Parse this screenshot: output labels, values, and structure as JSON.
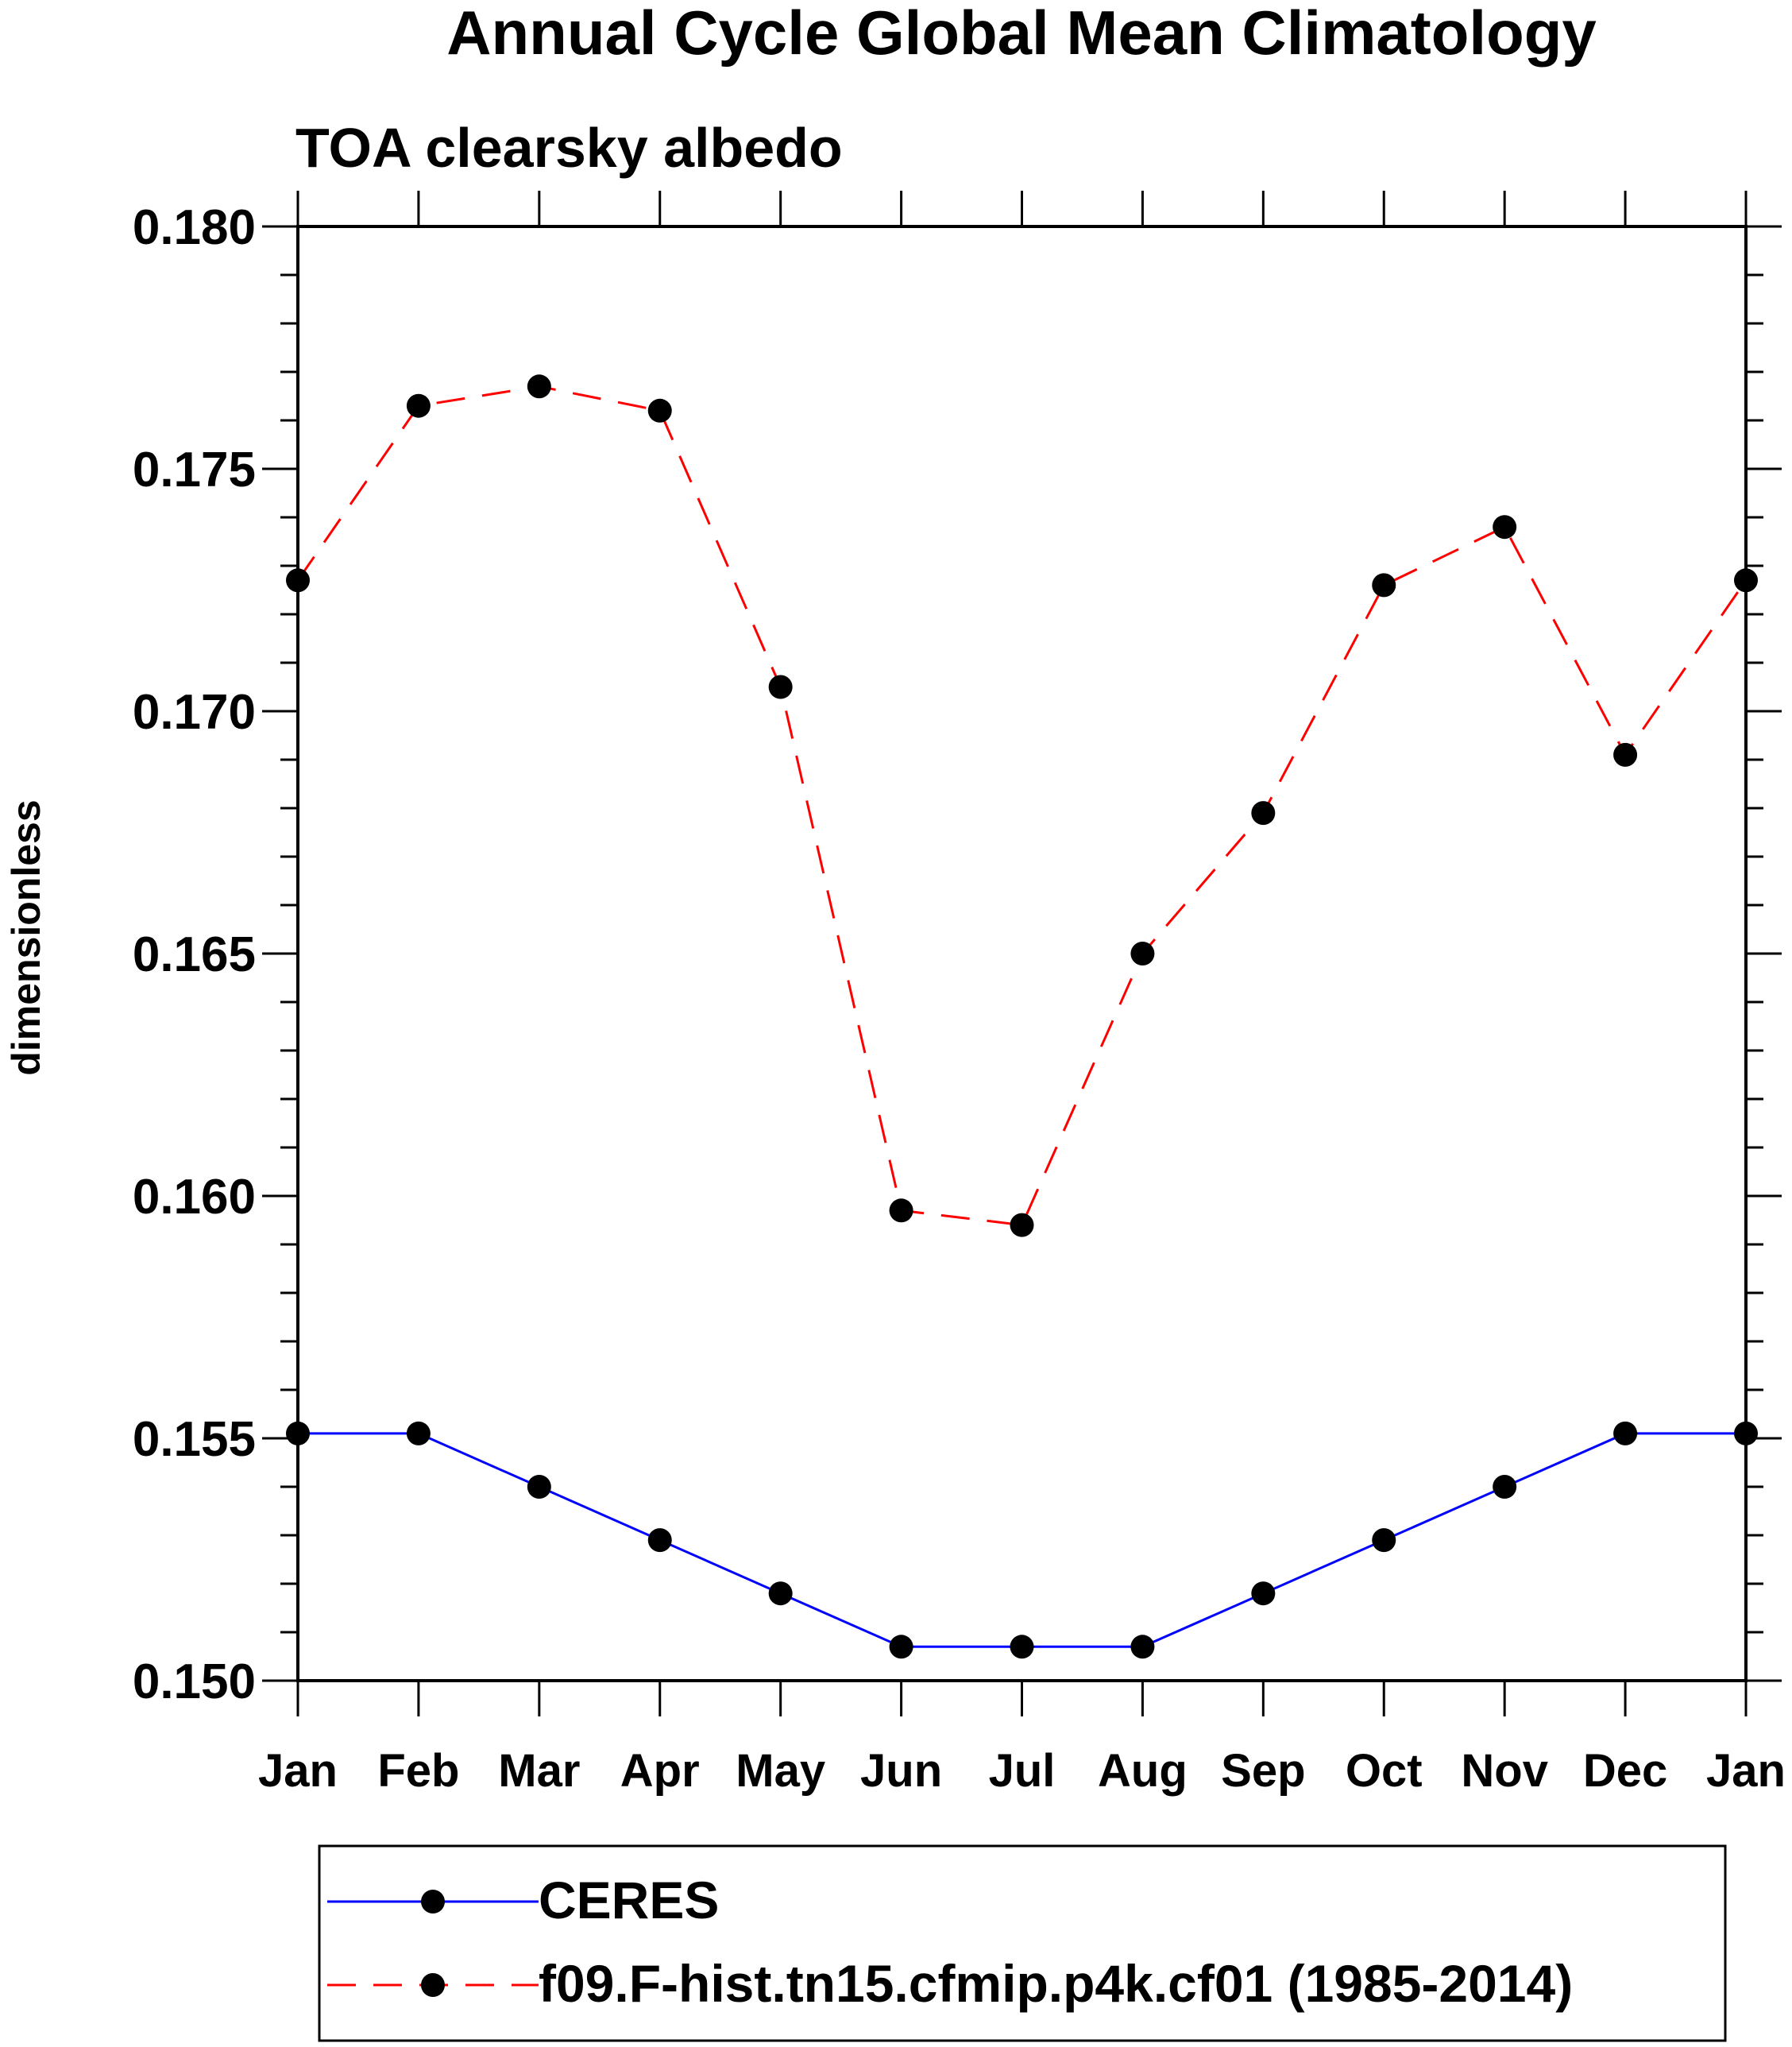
{
  "chart_data": {
    "type": "line",
    "title": "Annual Cycle Global Mean Climatology",
    "subtitle": "TOA clearsky albedo",
    "xlabel": "",
    "ylabel": "dimensionless",
    "categories": [
      "Jan",
      "Feb",
      "Mar",
      "Apr",
      "May",
      "Jun",
      "Jul",
      "Aug",
      "Sep",
      "Oct",
      "Nov",
      "Dec",
      "Jan"
    ],
    "ylim": [
      0.15,
      0.18
    ],
    "yticks": [
      "0.150",
      "0.155",
      "0.160",
      "0.165",
      "0.170",
      "0.175",
      "0.180"
    ],
    "series": [
      {
        "name": "CERES",
        "color": "#0000ff",
        "dash": "solid",
        "values": [
          0.1551,
          0.1551,
          0.154,
          0.1529,
          0.1518,
          0.1507,
          0.1507,
          0.1507,
          0.1518,
          0.1529,
          0.154,
          0.1551,
          0.1551
        ]
      },
      {
        "name": "f09.F-hist.tn15.cfmip.p4k.cf01 (1985-2014)",
        "color": "#ff0000",
        "dash": "dashed",
        "values": [
          0.1727,
          0.1763,
          0.1767,
          0.1762,
          0.1705,
          0.1597,
          0.1594,
          0.165,
          0.1679,
          0.1726,
          0.1738,
          0.1691,
          0.1727
        ]
      }
    ],
    "grid": false,
    "legend_position": "bottom"
  }
}
